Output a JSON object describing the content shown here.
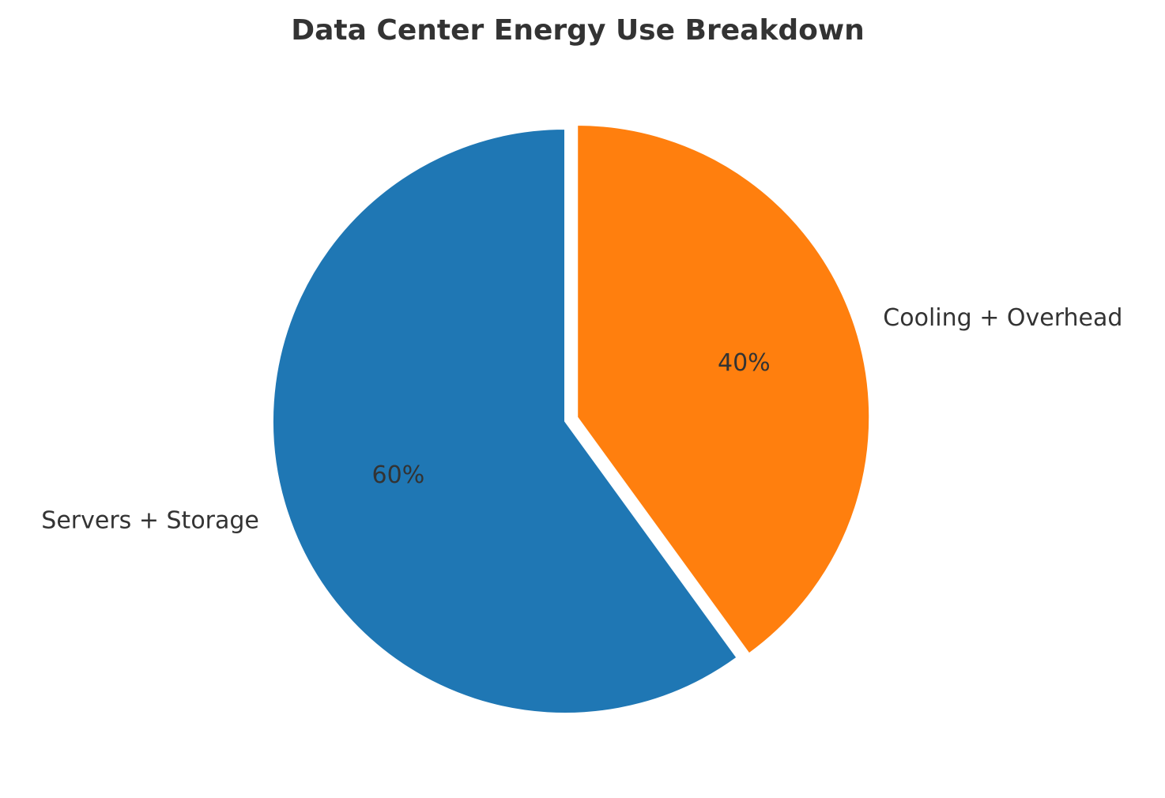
{
  "chart_data": {
    "type": "pie",
    "title": "Data Center Energy Use Breakdown",
    "categories": [
      "Servers + Storage",
      "Cooling + Overhead"
    ],
    "values": [
      60,
      40
    ],
    "percent_labels": [
      "60%",
      "40%"
    ],
    "colors": [
      "#1f77b4",
      "#ff7f0e"
    ],
    "exploded": [
      "Cooling + Overhead"
    ],
    "legend": "none"
  }
}
